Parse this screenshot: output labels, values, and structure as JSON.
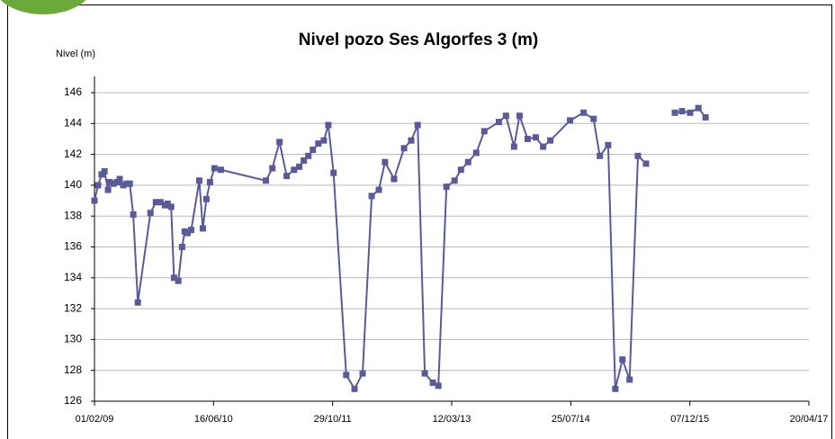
{
  "chart_data": {
    "type": "line",
    "title": "Nivel pozo Ses Algorfes 3 (m)",
    "y_label": "Nivel (m)",
    "color": "#5a5a96",
    "x": [
      "01/02/09",
      "16/02/09",
      "03/03/09",
      "15/03/09",
      "30/03/09",
      "06/04/09",
      "22/04/09",
      "07/05/09",
      "18/05/09",
      "02/06/09",
      "17/06/09",
      "29/06/09",
      "14/07/09",
      "02/08/09",
      "24/09/09",
      "17/10/09",
      "05/11/09",
      "24/11/09",
      "05/12/09",
      "20/12/09",
      "01/01/10",
      "19/01/10",
      "04/02/10",
      "15/02/10",
      "27/02/10",
      "14/03/10",
      "17/04/10",
      "02/05/10",
      "17/05/10",
      "01/06/10",
      "20/06/10",
      "17/07/10",
      "22/01/11",
      "18/02/11",
      "20/03/11",
      "19/04/11",
      "20/05/11",
      "11/06/11",
      "30/06/11",
      "19/07/11",
      "07/08/11",
      "30/08/11",
      "22/09/11",
      "11/10/11",
      "02/11/11",
      "25/12/11",
      "29/01/12",
      "03/03/12",
      "10/04/12",
      "10/05/12",
      "05/06/12",
      "13/07/12",
      "24/08/12",
      "23/09/12",
      "20/10/12",
      "19/11/12",
      "23/12/12",
      "15/01/13",
      "18/02/13",
      "24/03/13",
      "20/04/13",
      "20/05/13",
      "23/06/13",
      "27/07/13",
      "26/09/13",
      "26/10/13",
      "29/11/13",
      "22/12/13",
      "25/01/14",
      "28/02/14",
      "31/03/14",
      "30/04/14",
      "22/07/14",
      "17/09/14",
      "29/10/14",
      "24/11/14",
      "29/12/14",
      "28/01/15",
      "27/02/15",
      "29/03/15",
      "03/05/15",
      "06/06/15",
      null,
      "05/10/15",
      "04/11/15",
      "08/12/15",
      "12/01/16",
      "11/02/16"
    ],
    "values": [
      139.0,
      140.0,
      140.7,
      140.9,
      139.7,
      140.2,
      140.1,
      140.2,
      140.4,
      140.0,
      140.1,
      140.1,
      138.1,
      132.4,
      138.2,
      138.9,
      138.9,
      138.7,
      138.8,
      138.6,
      134.0,
      133.8,
      136.0,
      137.0,
      136.9,
      137.1,
      140.3,
      137.2,
      139.1,
      140.2,
      141.1,
      141.0,
      140.3,
      141.1,
      142.8,
      140.6,
      141.0,
      141.2,
      141.6,
      141.9,
      142.3,
      142.7,
      142.9,
      143.9,
      140.8,
      127.7,
      126.8,
      127.8,
      139.3,
      139.7,
      141.5,
      140.4,
      142.4,
      142.9,
      143.9,
      127.8,
      127.2,
      127.0,
      139.9,
      140.3,
      141.0,
      141.5,
      142.1,
      143.5,
      144.1,
      144.5,
      142.5,
      144.5,
      143.0,
      143.1,
      142.5,
      142.9,
      144.2,
      144.7,
      144.3,
      141.9,
      142.6,
      126.8,
      128.7,
      127.4,
      141.9,
      141.4,
      null,
      144.7,
      144.8,
      144.7,
      145.0,
      144.4
    ],
    "xlim": [
      "01/02/09",
      "20/04/17"
    ],
    "xticks": [
      "01/02/09",
      "16/06/10",
      "29/10/11",
      "12/03/13",
      "25/07/14",
      "07/12/15",
      "20/04/17"
    ],
    "ylim": [
      126,
      146
    ],
    "yticks": [
      126,
      128,
      130,
      132,
      134,
      136,
      138,
      140,
      142,
      144,
      146
    ],
    "grid": true
  }
}
